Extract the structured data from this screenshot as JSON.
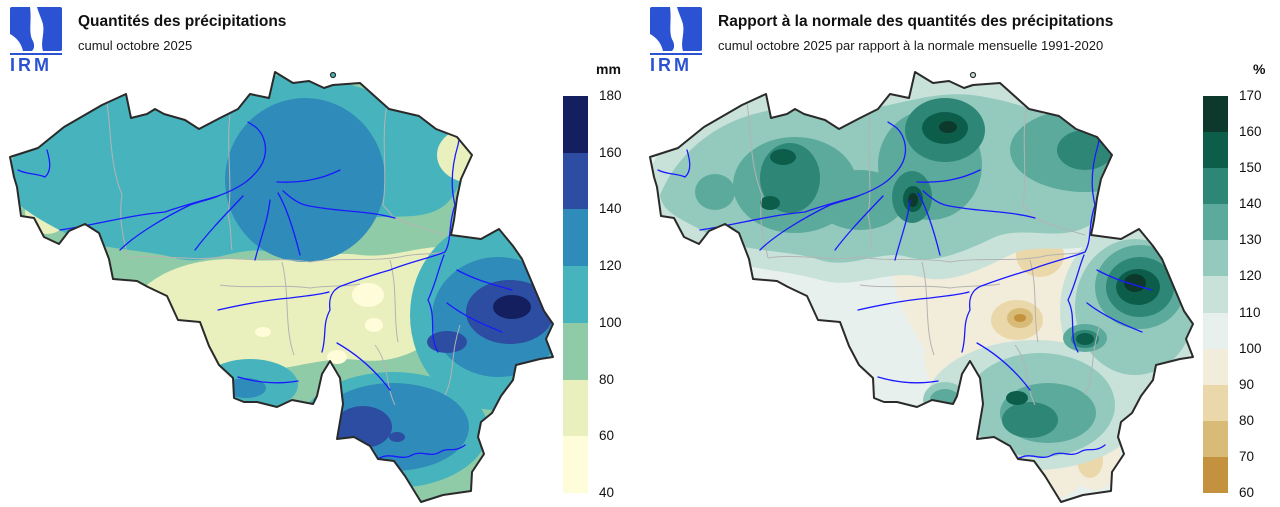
{
  "brand": {
    "logo_text": "IRM",
    "logo_color": "#2a52d2"
  },
  "map": {
    "river_color": "#1a1aff",
    "province_border_color": "#b3b3b3",
    "outline_color": "#2a2a2a"
  },
  "panels": [
    {
      "title": "Quantités des précipitations",
      "subtitle": "cumul octobre 2025",
      "legend": {
        "unit": "mm",
        "tick_labels": [
          "180",
          "160",
          "140",
          "120",
          "100",
          "80",
          "60",
          "40"
        ],
        "colors_top_to_bottom": [
          "#131f5e",
          "#2c4da1",
          "#2f8bb9",
          "#47b4bd",
          "#90cba8",
          "#e9f0be",
          "#fefcd9"
        ]
      }
    },
    {
      "title": "Rapport à la normale des quantités des précipitations",
      "subtitle": "cumul octobre 2025 par rapport à la normale mensuelle 1991-2020",
      "legend": {
        "unit": "%",
        "tick_labels": [
          "170",
          "160",
          "150",
          "140",
          "130",
          "120",
          "110",
          "100",
          "90",
          "80",
          "70",
          "60"
        ],
        "colors_top_to_bottom": [
          "#0d392c",
          "#0c5e4b",
          "#2e8677",
          "#5caa9b",
          "#94cabd",
          "#c8e2da",
          "#e8f0ed",
          "#f2ecda",
          "#ead8aa",
          "#d9bb78",
          "#c4923e"
        ]
      }
    }
  ]
}
